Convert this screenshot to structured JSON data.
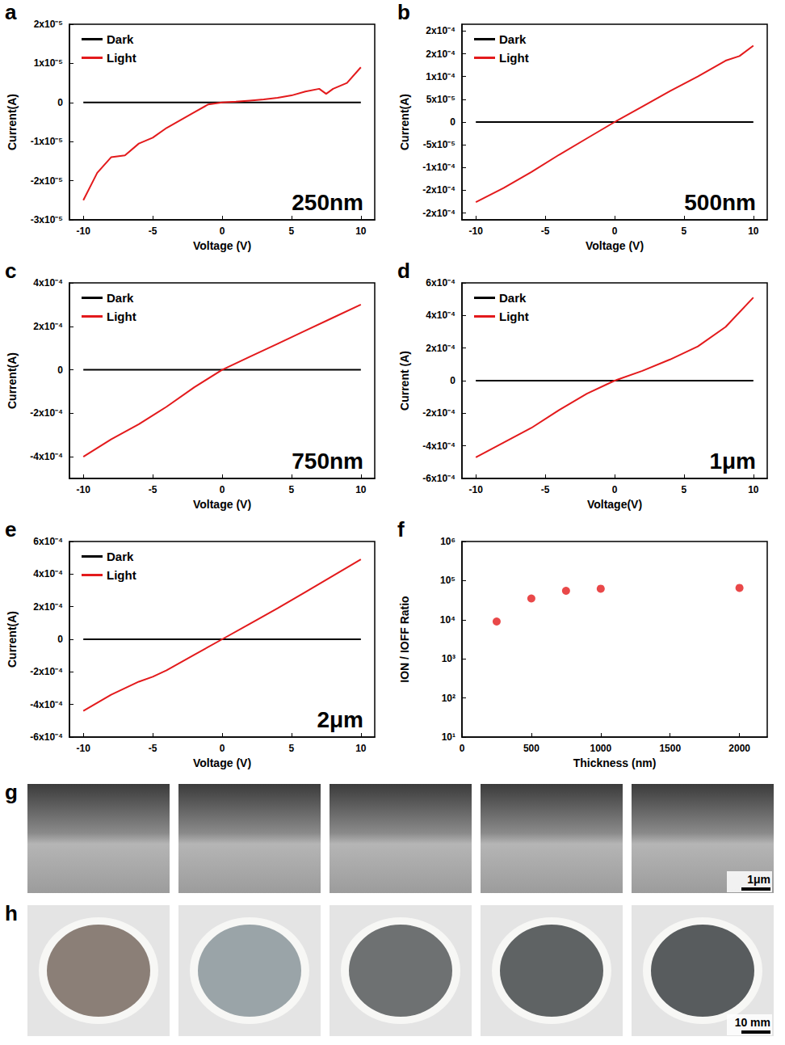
{
  "chart_data": [
    {
      "panel": "a",
      "type": "line",
      "annotation": "250nm",
      "x_label": "Voltage (V)",
      "y_label": "Current(A)",
      "x": [
        -10,
        -9,
        -8,
        -7,
        -6,
        -5,
        -4,
        -3,
        -2,
        -1,
        0,
        1,
        2,
        3,
        4,
        5,
        6,
        7,
        7.5,
        8,
        9,
        10
      ],
      "series": [
        {
          "name": "Dark",
          "color": "#000000",
          "values": [
            0,
            0,
            0,
            0,
            0,
            0,
            0,
            0,
            0,
            0,
            0,
            0,
            0,
            0,
            0,
            0,
            0,
            0,
            0,
            0,
            0,
            0
          ]
        },
        {
          "name": "Light",
          "color": "#e31a1c",
          "values": [
            -2.5e-05,
            -1.8e-05,
            -1.4e-05,
            -1.35e-05,
            -1.05e-05,
            -9e-06,
            -6.5e-06,
            -4.5e-06,
            -2.5e-06,
            -5e-07,
            0,
            2e-07,
            5e-07,
            8e-07,
            1.2e-06,
            1.8e-06,
            2.8e-06,
            3.5e-06,
            2.2e-06,
            3.5e-06,
            5e-06,
            9e-06
          ]
        }
      ],
      "xlim": [
        -11,
        11
      ],
      "xticks": [
        -10,
        -5,
        0,
        5,
        10
      ],
      "ylim": [
        -3e-05,
        2e-05
      ],
      "yticks": [
        {
          "value": -3e-05,
          "label": "-3x10⁻⁵"
        },
        {
          "value": -2e-05,
          "label": "-2x10⁻⁵"
        },
        {
          "value": -1e-05,
          "label": "-1x10⁻⁵"
        },
        0,
        {
          "value": 1e-05,
          "label": "1x10⁻⁵"
        },
        {
          "value": 2e-05,
          "label": "2x10⁻⁵"
        }
      ],
      "legend": "upper left",
      "grid": false
    },
    {
      "panel": "b",
      "type": "line",
      "annotation": "500nm",
      "x_label": "Voltage (V)",
      "y_label": "Current(A)",
      "x": [
        -10,
        -8,
        -6,
        -4,
        -2,
        0,
        2,
        4,
        6,
        8,
        9,
        10
      ],
      "series": [
        {
          "name": "Dark",
          "color": "#000000",
          "values": [
            0,
            0,
            0,
            0,
            0,
            0,
            0,
            0,
            0,
            0,
            0,
            0
          ]
        },
        {
          "name": "Light",
          "color": "#e31a1c",
          "values": [
            -0.000176,
            -0.000145,
            -0.00011,
            -7.2e-05,
            -3.6e-05,
            0,
            3.4e-05,
            6.8e-05,
            0.0001,
            0.000135,
            0.000145,
            0.000168
          ]
        }
      ],
      "xlim": [
        -11,
        11
      ],
      "xticks": [
        -10,
        -5,
        0,
        5,
        10
      ],
      "ylim": [
        -0.000215,
        0.000215
      ],
      "yticks": [
        {
          "value": -0.0002,
          "label": "-2x10⁻⁴"
        },
        {
          "value": -0.00015,
          "label": "-2x10⁻⁴"
        },
        {
          "value": -0.0001,
          "label": "-1x10⁻⁴"
        },
        {
          "value": -5e-05,
          "label": "-5x10⁻⁵"
        },
        0,
        {
          "value": 5e-05,
          "label": "5x10⁻⁵"
        },
        {
          "value": 0.0001,
          "label": "1x10⁻⁴"
        },
        {
          "value": 0.00015,
          "label": "2x10⁻⁴"
        },
        {
          "value": 0.0002,
          "label": "2x10⁻⁴"
        }
      ],
      "legend": "upper left",
      "grid": false
    },
    {
      "panel": "c",
      "type": "line",
      "annotation": "750nm",
      "x_label": "Voltage (V)",
      "y_label": "Current(A)",
      "x": [
        -10,
        -8,
        -6,
        -4,
        -2,
        0,
        2,
        4,
        6,
        8,
        10
      ],
      "series": [
        {
          "name": "Dark",
          "color": "#000000",
          "values": [
            0,
            0,
            0,
            0,
            0,
            0,
            0,
            0,
            0,
            0,
            0
          ]
        },
        {
          "name": "Light",
          "color": "#e31a1c",
          "values": [
            -0.0004,
            -0.00032,
            -0.00025,
            -0.00017,
            -8e-05,
            0,
            6e-05,
            0.00012,
            0.00018,
            0.00024,
            0.0003
          ]
        }
      ],
      "xlim": [
        -11,
        11
      ],
      "xticks": [
        -10,
        -5,
        0,
        5,
        10
      ],
      "ylim": [
        -0.0005,
        0.0004
      ],
      "yticks": [
        {
          "value": -0.0004,
          "label": "-4x10⁻⁴"
        },
        {
          "value": -0.0002,
          "label": "-2x10⁻⁴"
        },
        0,
        {
          "value": 0.0002,
          "label": "2x10⁻⁴"
        },
        {
          "value": 0.0004,
          "label": "4x10⁻⁴"
        }
      ],
      "legend": "upper left",
      "grid": false
    },
    {
      "panel": "d",
      "type": "line",
      "annotation": "1μm",
      "x_label": "Voltage(V)",
      "y_label": "Current (A)",
      "x": [
        -10,
        -8,
        -6,
        -4,
        -2,
        0,
        2,
        4,
        6,
        8,
        10
      ],
      "series": [
        {
          "name": "Dark",
          "color": "#000000",
          "values": [
            0,
            0,
            0,
            0,
            0,
            0,
            0,
            0,
            0,
            0,
            0
          ]
        },
        {
          "name": "Light",
          "color": "#e31a1c",
          "values": [
            -0.00047,
            -0.00038,
            -0.00029,
            -0.00018,
            -8e-05,
            0,
            6e-05,
            0.00013,
            0.00021,
            0.00033,
            0.00051
          ]
        }
      ],
      "xlim": [
        -11,
        11
      ],
      "xticks": [
        -10,
        -5,
        0,
        5,
        10
      ],
      "ylim": [
        -0.0006,
        0.0006
      ],
      "yticks": [
        {
          "value": -0.0006,
          "label": "-6x10⁻⁴"
        },
        {
          "value": -0.0004,
          "label": "-4x10⁻⁴"
        },
        {
          "value": -0.0002,
          "label": "-2x10⁻⁴"
        },
        0,
        {
          "value": 0.0002,
          "label": "2x10⁻⁴"
        },
        {
          "value": 0.0004,
          "label": "4x10⁻⁴"
        },
        {
          "value": 0.0006,
          "label": "6x10⁻⁴"
        }
      ],
      "legend": "upper left",
      "grid": false
    },
    {
      "panel": "e",
      "type": "line",
      "annotation": "2μm",
      "x_label": "Voltage (V)",
      "y_label": "Current(A)",
      "x": [
        -10,
        -8,
        -6,
        -5,
        -4,
        -2,
        0,
        2,
        4,
        6,
        8,
        10
      ],
      "series": [
        {
          "name": "Dark",
          "color": "#000000",
          "values": [
            0,
            0,
            0,
            0,
            0,
            0,
            0,
            0,
            0,
            0,
            0,
            0
          ]
        },
        {
          "name": "Light",
          "color": "#e31a1c",
          "values": [
            -0.00044,
            -0.00034,
            -0.00026,
            -0.00023,
            -0.00019,
            -9.5e-05,
            0,
            9.5e-05,
            0.00019,
            0.00029,
            0.00039,
            0.00049
          ]
        }
      ],
      "xlim": [
        -11,
        11
      ],
      "xticks": [
        -10,
        -5,
        0,
        5,
        10
      ],
      "ylim": [
        -0.0006,
        0.0006
      ],
      "yticks": [
        {
          "value": -0.0006,
          "label": "-6x10⁻⁴"
        },
        {
          "value": -0.0004,
          "label": "-4x10⁻⁴"
        },
        {
          "value": -0.0002,
          "label": "-2x10⁻⁴"
        },
        0,
        {
          "value": 0.0002,
          "label": "2x10⁻⁴"
        },
        {
          "value": 0.0004,
          "label": "4x10⁻⁴"
        },
        {
          "value": 0.0006,
          "label": "6x10⁻⁴"
        }
      ],
      "legend": "upper left",
      "grid": false
    },
    {
      "panel": "f",
      "type": "scatter",
      "x_label": "Thickness (nm)",
      "y_label": "ION / IOFF Ratio",
      "x": [
        250,
        500,
        750,
        1000,
        2000
      ],
      "values": [
        9000,
        35000,
        55000,
        62000,
        65000
      ],
      "color": "#e31a1c",
      "marker": "circle",
      "xlim": [
        0,
        2200
      ],
      "xticks": [
        0,
        500,
        1000,
        1500,
        2000
      ],
      "ylim": [
        10,
        1000000
      ],
      "yticks": [
        {
          "value": 10,
          "label": "10¹"
        },
        {
          "value": 100,
          "label": "10²"
        },
        {
          "value": 1000,
          "label": "10³"
        },
        {
          "value": 10000,
          "label": "10⁴"
        },
        {
          "value": 100000,
          "label": "10⁵"
        },
        {
          "value": 1000000,
          "label": "10⁶"
        }
      ],
      "log": "y",
      "grid": false
    }
  ],
  "figure_panels": [
    {
      "label": "g",
      "kind": "SEM cross-sections",
      "scale_bar": "1μm"
    },
    {
      "label": "h",
      "kind": "photographs",
      "scale_bar": "10 mm"
    }
  ]
}
